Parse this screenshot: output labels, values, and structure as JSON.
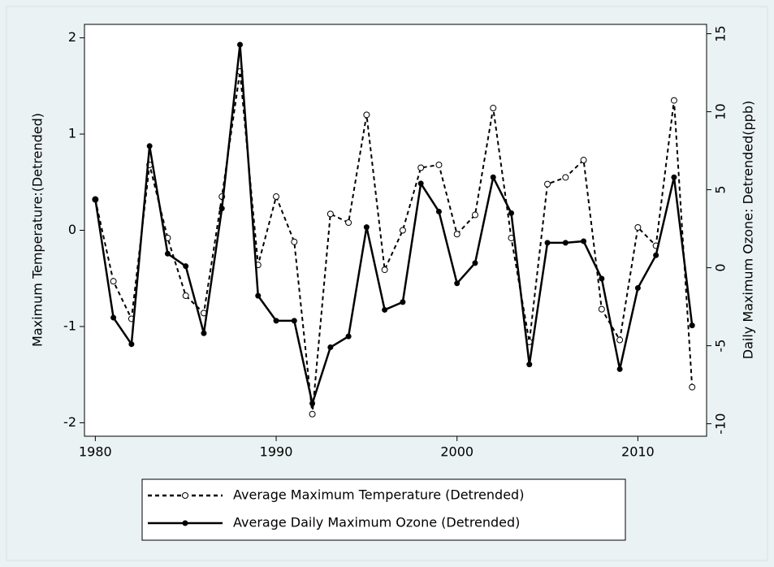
{
  "chart_data": {
    "type": "line",
    "x": [
      1980,
      1981,
      1982,
      1983,
      1984,
      1985,
      1986,
      1987,
      1988,
      1989,
      1990,
      1991,
      1992,
      1993,
      1994,
      1995,
      1996,
      1997,
      1998,
      1999,
      2000,
      2001,
      2002,
      2003,
      2004,
      2005,
      2006,
      2007,
      2008,
      2009,
      2010,
      2011,
      2012,
      2013
    ],
    "series": [
      {
        "name": "Average Maximum Temperature (Detrended)",
        "color": "#000000",
        "style": "dashed",
        "marker": "hollow",
        "values": [
          0.32,
          -0.53,
          -0.92,
          0.68,
          -0.08,
          -0.68,
          -0.86,
          0.35,
          1.65,
          -0.36,
          0.35,
          -0.12,
          -1.91,
          0.17,
          0.08,
          1.2,
          -0.41,
          0.0,
          0.65,
          0.68,
          -0.04,
          0.16,
          1.27,
          -0.08,
          -1.16,
          0.48,
          0.55,
          0.73,
          -0.82,
          -1.14,
          0.03,
          -0.16,
          1.35,
          -1.63
        ]
      },
      {
        "name": "Average Daily Maximum Ozone (Detrended)",
        "color": "#000000",
        "style": "solid",
        "marker": "filled",
        "axis": "y2",
        "values": [
          4.4,
          -3.2,
          -4.9,
          7.8,
          0.9,
          0.1,
          -4.2,
          3.8,
          14.3,
          -1.8,
          -3.4,
          -3.4,
          -8.7,
          -5.1,
          -4.4,
          2.6,
          -2.7,
          -2.2,
          5.4,
          3.6,
          -1.0,
          0.3,
          5.8,
          3.5,
          -6.2,
          1.6,
          1.6,
          1.7,
          -0.7,
          -6.5,
          -1.3,
          0.8,
          5.8,
          -3.7
        ]
      }
    ],
    "ylabel": "Maximum Temperature:(Detrended)",
    "y2label": "Daily Maximum Ozone: Detrended(ppb)",
    "xlim": [
      1979.4,
      2013.8
    ],
    "xticks": [
      1980,
      1990,
      2000,
      2010
    ],
    "ylim": [
      -2.14,
      2.14
    ],
    "yticks": [
      -2,
      -1,
      0,
      1,
      2
    ],
    "y2lim": [
      -10.8,
      15.6
    ],
    "y2ticks": [
      -10,
      -5,
      0,
      5,
      10,
      15
    ],
    "grid": false
  }
}
